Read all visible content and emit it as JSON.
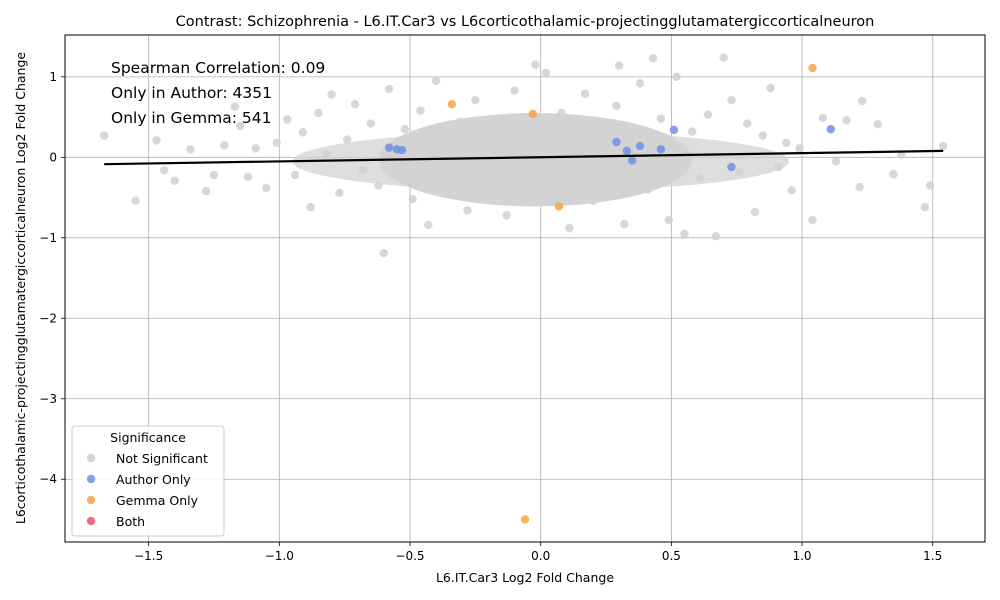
{
  "chart_data": {
    "type": "scatter",
    "title": "Contrast: Schizophrenia - L6.IT.Car3 vs L6corticothalamic-projectingglutamatergiccorticalneuron",
    "xlabel": "L6.IT.Car3 Log2 Fold Change",
    "ylabel": "L6corticothalamic-projectingglutamatergiccorticalneuron Log2 Fold Change",
    "xlim": [
      -1.82,
      1.7
    ],
    "ylim": [
      -4.78,
      1.52
    ],
    "xticks": [
      -1.5,
      -1.0,
      -0.5,
      0.0,
      0.5,
      1.0,
      1.5
    ],
    "xtick_labels": [
      "−1.5",
      "−1.0",
      "−0.5",
      "0.0",
      "0.5",
      "1.0",
      "1.5"
    ],
    "yticks": [
      -4,
      -3,
      -2,
      -1,
      0,
      1
    ],
    "ytick_labels": [
      "−4",
      "−3",
      "−2",
      "−1",
      "0",
      "1"
    ],
    "grid": true,
    "annotations": [
      "Spearman Correlation: 0.09",
      "Only in Author: 4351",
      "Only in Gemma: 541"
    ],
    "regression_line": {
      "x": [
        -1.67,
        1.54
      ],
      "y": [
        -0.085,
        0.08
      ],
      "color": "#000000"
    },
    "legend": {
      "title": "Significance",
      "placement": "lower-left",
      "entries": [
        {
          "label": "Not Significant",
          "color": "#d3d3d3"
        },
        {
          "label": "Author Only",
          "color": "#6f8fe6"
        },
        {
          "label": "Gemma Only",
          "color": "#f5a547"
        },
        {
          "label": "Both",
          "color": "#e0566e"
        }
      ]
    },
    "series": [
      {
        "name": "Not Significant",
        "color": "#d3d3d3",
        "points": [
          [
            -1.67,
            0.27
          ],
          [
            -1.55,
            -0.54
          ],
          [
            -1.47,
            0.21
          ],
          [
            -1.44,
            -0.16
          ],
          [
            -1.4,
            -0.29
          ],
          [
            -1.34,
            0.1
          ],
          [
            -1.28,
            -0.42
          ],
          [
            -1.25,
            -0.22
          ],
          [
            -1.21,
            0.15
          ],
          [
            -1.17,
            0.63
          ],
          [
            -1.15,
            0.39
          ],
          [
            -1.12,
            -0.24
          ],
          [
            -1.09,
            0.11
          ],
          [
            -1.05,
            -0.38
          ],
          [
            -1.01,
            0.18
          ],
          [
            -0.97,
            0.47
          ],
          [
            -0.94,
            -0.22
          ],
          [
            -0.91,
            0.31
          ],
          [
            -0.88,
            -0.62
          ],
          [
            -0.85,
            0.55
          ],
          [
            -0.82,
            0.04
          ],
          [
            -0.8,
            0.78
          ],
          [
            -0.77,
            -0.44
          ],
          [
            -0.74,
            0.22
          ],
          [
            -0.71,
            0.66
          ],
          [
            -0.68,
            -0.16
          ],
          [
            -0.65,
            0.42
          ],
          [
            -0.62,
            -0.35
          ],
          [
            -0.6,
            -1.19
          ],
          [
            -0.58,
            0.85
          ],
          [
            -0.55,
            -0.08
          ],
          [
            -0.52,
            0.35
          ],
          [
            -0.49,
            -0.52
          ],
          [
            -0.46,
            0.58
          ],
          [
            -0.43,
            -0.84
          ],
          [
            -0.4,
            0.95
          ],
          [
            -0.37,
            0.14
          ],
          [
            -0.34,
            -0.3
          ],
          [
            -0.31,
            0.44
          ],
          [
            -0.28,
            -0.66
          ],
          [
            -0.25,
            0.71
          ],
          [
            -0.22,
            0.06
          ],
          [
            -0.19,
            -0.45
          ],
          [
            -0.16,
            0.3
          ],
          [
            -0.13,
            -0.72
          ],
          [
            -0.1,
            0.83
          ],
          [
            -0.07,
            0.12
          ],
          [
            -0.04,
            -0.38
          ],
          [
            -0.02,
            1.15
          ],
          [
            0.02,
            1.05
          ],
          [
            0.05,
            -0.28
          ],
          [
            0.08,
            0.55
          ],
          [
            0.11,
            -0.88
          ],
          [
            0.14,
            0.2
          ],
          [
            0.17,
            0.79
          ],
          [
            0.2,
            -0.54
          ],
          [
            0.23,
            0.36
          ],
          [
            0.26,
            -0.18
          ],
          [
            0.29,
            0.64
          ],
          [
            0.3,
            1.14
          ],
          [
            0.32,
            -0.83
          ],
          [
            0.35,
            0.25
          ],
          [
            0.38,
            0.92
          ],
          [
            0.41,
            -0.4
          ],
          [
            0.43,
            1.23
          ],
          [
            0.46,
            0.48
          ],
          [
            0.49,
            -0.78
          ],
          [
            0.52,
            1.0
          ],
          [
            0.55,
            -0.95
          ],
          [
            0.58,
            0.32
          ],
          [
            0.61,
            -0.26
          ],
          [
            0.64,
            0.53
          ],
          [
            0.67,
            -0.98
          ],
          [
            0.7,
            1.24
          ],
          [
            0.73,
            0.71
          ],
          [
            0.76,
            -0.18
          ],
          [
            0.79,
            0.42
          ],
          [
            0.82,
            -0.68
          ],
          [
            0.85,
            0.27
          ],
          [
            0.88,
            0.86
          ],
          [
            0.91,
            -0.12
          ],
          [
            0.94,
            0.18
          ],
          [
            0.96,
            -0.41
          ],
          [
            0.99,
            0.11
          ],
          [
            1.04,
            -0.78
          ],
          [
            1.08,
            0.49
          ],
          [
            1.13,
            -0.05
          ],
          [
            1.17,
            0.46
          ],
          [
            1.22,
            -0.37
          ],
          [
            1.23,
            0.7
          ],
          [
            1.29,
            0.41
          ],
          [
            1.35,
            -0.21
          ],
          [
            1.38,
            0.03
          ],
          [
            1.47,
            -0.62
          ],
          [
            1.49,
            -0.35
          ],
          [
            1.54,
            0.14
          ]
        ]
      },
      {
        "name": "Author Only",
        "color": "#6f8fe6",
        "points": [
          [
            -0.58,
            0.12
          ],
          [
            -0.55,
            0.1
          ],
          [
            -0.53,
            0.09
          ],
          [
            0.29,
            0.19
          ],
          [
            0.33,
            0.08
          ],
          [
            0.35,
            -0.04
          ],
          [
            0.38,
            0.14
          ],
          [
            0.46,
            0.1
          ],
          [
            0.51,
            0.34
          ],
          [
            0.73,
            -0.12
          ],
          [
            1.11,
            0.35
          ]
        ]
      },
      {
        "name": "Gemma Only",
        "color": "#f5a547",
        "points": [
          [
            -0.34,
            0.66
          ],
          [
            -0.03,
            0.54
          ],
          [
            0.07,
            -0.61
          ],
          [
            1.04,
            1.11
          ],
          [
            -0.06,
            -4.5
          ]
        ]
      },
      {
        "name": "Both",
        "color": "#e0566e",
        "points": []
      }
    ]
  }
}
